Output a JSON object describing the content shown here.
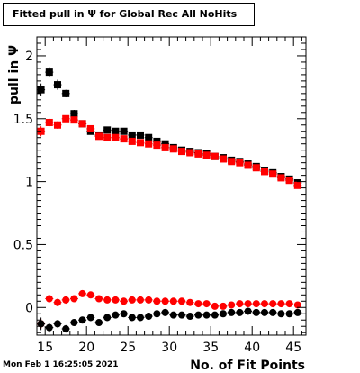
{
  "chart_data": {
    "type": "scatter",
    "title": "Fitted pull in  Ψ  for Global Rec All NoHits",
    "xlabel": "No. of Fit Points",
    "ylabel": "pull in  Ψ",
    "xlim": [
      14,
      46.5
    ],
    "ylim": [
      -0.22,
      2.15
    ],
    "xticks": [
      15,
      20,
      25,
      30,
      35,
      40,
      45
    ],
    "yticks": [
      0,
      0.5,
      1,
      1.5,
      2
    ],
    "ytick_labels": [
      "0",
      "0.5",
      "1",
      "1.5",
      "2"
    ],
    "grid": false,
    "legend": "none",
    "series": [
      {
        "marker": "square",
        "color": "#000000",
        "x": [
          14.5,
          15.5,
          16.5,
          17.5,
          18.5,
          19.5,
          20.5,
          21.5,
          22.5,
          23.5,
          24.5,
          25.5,
          26.5,
          27.5,
          28.5,
          29.5,
          30.5,
          31.5,
          32.5,
          33.5,
          34.5,
          35.5,
          36.5,
          37.5,
          38.5,
          39.5,
          40.5,
          41.5,
          42.5,
          43.5,
          44.5,
          45.5
        ],
        "y": [
          1.73,
          1.87,
          1.77,
          1.7,
          1.54,
          1.46,
          1.4,
          1.37,
          1.41,
          1.4,
          1.4,
          1.37,
          1.37,
          1.35,
          1.32,
          1.3,
          1.27,
          1.25,
          1.24,
          1.23,
          1.22,
          1.2,
          1.19,
          1.17,
          1.16,
          1.14,
          1.12,
          1.09,
          1.07,
          1.04,
          1.02,
          0.99
        ],
        "err": [
          0.05,
          0.04,
          0.04,
          0.03,
          0.03,
          0.02,
          0.02,
          0.02,
          0.02,
          0.02,
          0.02,
          0.02,
          0.02,
          0.02,
          0.01,
          0.01,
          0.01,
          0.01,
          0.01,
          0.01,
          0.01,
          0.01,
          0.01,
          0.01,
          0.01,
          0.01,
          0.01,
          0.01,
          0.01,
          0.01,
          0.01,
          0.01
        ]
      },
      {
        "marker": "square",
        "color": "#ff0000",
        "x": [
          14.5,
          15.5,
          16.5,
          17.5,
          18.5,
          19.5,
          20.5,
          21.5,
          22.5,
          23.5,
          24.5,
          25.5,
          26.5,
          27.5,
          28.5,
          29.5,
          30.5,
          31.5,
          32.5,
          33.5,
          34.5,
          35.5,
          36.5,
          37.5,
          38.5,
          39.5,
          40.5,
          41.5,
          42.5,
          43.5,
          44.5,
          45.5
        ],
        "y": [
          1.4,
          1.47,
          1.45,
          1.5,
          1.49,
          1.46,
          1.42,
          1.36,
          1.35,
          1.35,
          1.34,
          1.32,
          1.31,
          1.3,
          1.29,
          1.27,
          1.26,
          1.24,
          1.23,
          1.22,
          1.21,
          1.2,
          1.18,
          1.16,
          1.15,
          1.13,
          1.11,
          1.08,
          1.06,
          1.03,
          1.01,
          0.97
        ],
        "err": [
          0.04,
          0.03,
          0.03,
          0.02,
          0.02,
          0.02,
          0.02,
          0.02,
          0.02,
          0.01,
          0.01,
          0.01,
          0.01,
          0.01,
          0.01,
          0.01,
          0.01,
          0.01,
          0.01,
          0.01,
          0.01,
          0.01,
          0.01,
          0.01,
          0.01,
          0.01,
          0.01,
          0.01,
          0.01,
          0.01,
          0.01,
          0.01
        ]
      },
      {
        "marker": "circle",
        "color": "#ff0000",
        "x": [
          14.5,
          15.5,
          16.5,
          17.5,
          18.5,
          19.5,
          20.5,
          21.5,
          22.5,
          23.5,
          24.5,
          25.5,
          26.5,
          27.5,
          28.5,
          29.5,
          30.5,
          31.5,
          32.5,
          33.5,
          34.5,
          35.5,
          36.5,
          37.5,
          38.5,
          39.5,
          40.5,
          41.5,
          42.5,
          43.5,
          44.5,
          45.5
        ],
        "y": [
          -0.13,
          0.07,
          0.04,
          0.06,
          0.07,
          0.11,
          0.1,
          0.07,
          0.06,
          0.06,
          0.05,
          0.06,
          0.06,
          0.06,
          0.05,
          0.05,
          0.05,
          0.05,
          0.04,
          0.03,
          0.03,
          0.01,
          0.01,
          0.02,
          0.03,
          0.03,
          0.03,
          0.03,
          0.03,
          0.03,
          0.03,
          0.02
        ],
        "err": [
          0.04,
          0.03,
          0.03,
          0.03,
          0.02,
          0.02,
          0.02,
          0.02,
          0.02,
          0.02,
          0.02,
          0.02,
          0.02,
          0.01,
          0.01,
          0.01,
          0.01,
          0.01,
          0.01,
          0.01,
          0.01,
          0.01,
          0.01,
          0.01,
          0.01,
          0.01,
          0.01,
          0.01,
          0.01,
          0.01,
          0.01,
          0.01
        ]
      },
      {
        "marker": "circle",
        "color": "#000000",
        "x": [
          14.5,
          15.5,
          16.5,
          17.5,
          18.5,
          19.5,
          20.5,
          21.5,
          22.5,
          23.5,
          24.5,
          25.5,
          26.5,
          27.5,
          28.5,
          29.5,
          30.5,
          31.5,
          32.5,
          33.5,
          34.5,
          35.5,
          36.5,
          37.5,
          38.5,
          39.5,
          40.5,
          41.5,
          42.5,
          43.5,
          44.5,
          45.5
        ],
        "y": [
          -0.13,
          -0.16,
          -0.13,
          -0.17,
          -0.12,
          -0.1,
          -0.08,
          -0.12,
          -0.08,
          -0.06,
          -0.05,
          -0.08,
          -0.08,
          -0.07,
          -0.05,
          -0.04,
          -0.06,
          -0.06,
          -0.07,
          -0.06,
          -0.06,
          -0.06,
          -0.05,
          -0.04,
          -0.04,
          -0.03,
          -0.04,
          -0.04,
          -0.04,
          -0.05,
          -0.05,
          -0.04
        ],
        "err": [
          0.05,
          0.04,
          0.03,
          0.03,
          0.02,
          0.02,
          0.02,
          0.02,
          0.02,
          0.02,
          0.02,
          0.01,
          0.01,
          0.01,
          0.01,
          0.01,
          0.01,
          0.01,
          0.01,
          0.01,
          0.01,
          0.01,
          0.01,
          0.01,
          0.01,
          0.01,
          0.01,
          0.01,
          0.01,
          0.01,
          0.01,
          0.01
        ]
      }
    ]
  },
  "footer": {
    "timestamp": "Mon Feb  1 16:25:05 2021"
  }
}
